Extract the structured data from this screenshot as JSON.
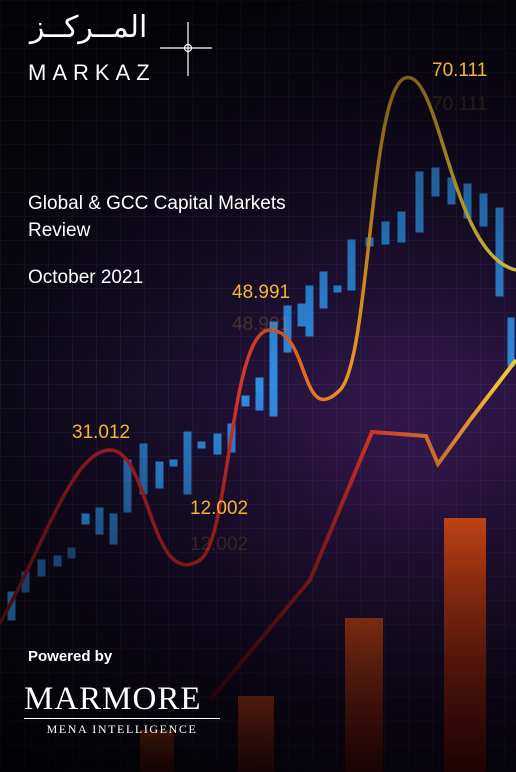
{
  "logo": {
    "arabic_text": "المــركــز",
    "english_text": "MARKAZ"
  },
  "title": "Global & GCC Capital Markets Review",
  "title_line1": "Global & GCC Capital Markets",
  "title_line2": "Review",
  "date": "October 2021",
  "chart_labels": [
    "70.111",
    "48.991",
    "31.012",
    "12.002"
  ],
  "powered_by": "Powered by",
  "marmore": {
    "name": "MARMORE",
    "tagline": "MENA INTELLIGENCE"
  },
  "colors": {
    "accent": "#f3b43a",
    "line_yellow": "#f7e64a",
    "line_red": "#c21e2a",
    "candle_blue": "#2f8de4"
  }
}
